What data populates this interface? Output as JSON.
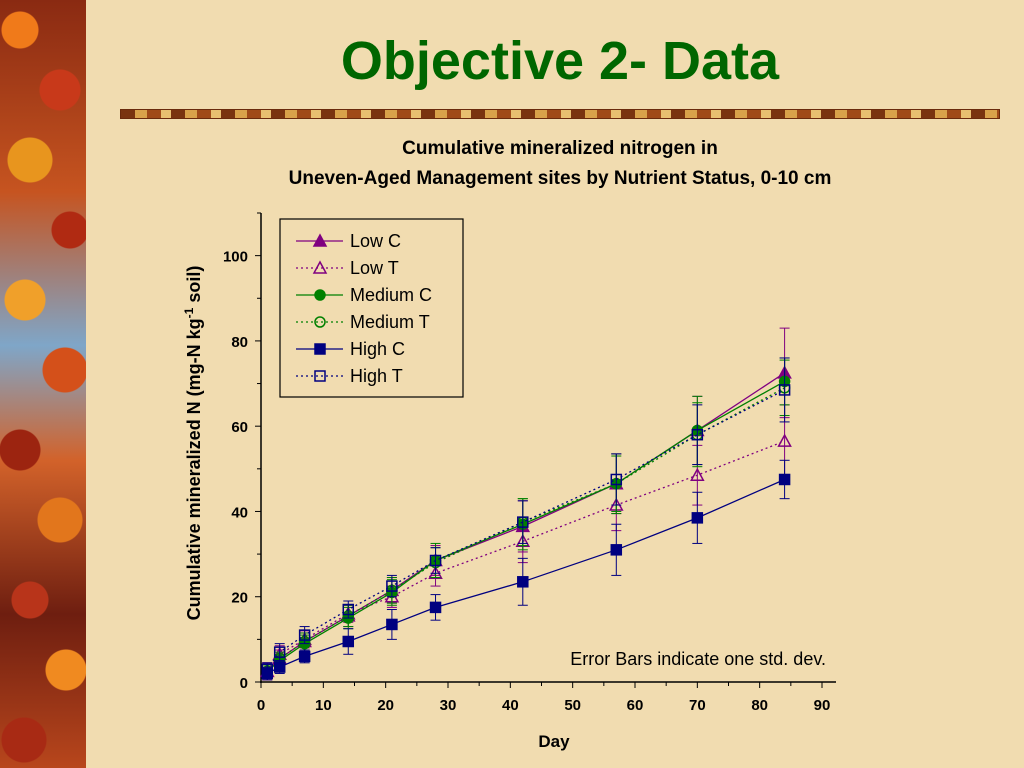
{
  "slide": {
    "title": "Objective 2- Data"
  },
  "colors": {
    "background": "#f1dcb0",
    "title": "#006600",
    "low": "#800080",
    "medium": "#008000",
    "high": "#000080"
  },
  "chart_data": {
    "type": "line",
    "title_line1": "Cumulative mineralized nitrogen in",
    "title_line2": "Uneven-Aged Management sites by Nutrient Status, 0-10 cm",
    "xlabel": "Day",
    "ylabel_main": "Cumulative mineralized N (mg-N kg",
    "ylabel_sup": "-1",
    "ylabel_end": " soil)",
    "xlim": [
      0,
      90
    ],
    "ylim": [
      0,
      110
    ],
    "xticks": [
      0,
      10,
      20,
      30,
      40,
      50,
      60,
      70,
      80,
      90
    ],
    "yticks": [
      0,
      20,
      40,
      60,
      80,
      100
    ],
    "grid": false,
    "legend_position": "top-left",
    "annotation": "Error Bars indicate one std. dev.",
    "x": [
      1,
      3,
      7,
      14,
      21,
      28,
      42,
      57,
      70,
      84
    ],
    "series": [
      {
        "name": "Low C",
        "color": "#800080",
        "marker": "triangle",
        "filled": true,
        "dashed": false,
        "values": [
          2.5,
          5.5,
          9.5,
          15.5,
          21.5,
          28.5,
          36.5,
          46.5,
          59,
          72.5
        ],
        "errors": [
          2,
          2,
          2,
          2.5,
          3,
          3.5,
          6,
          7,
          8,
          10.5
        ]
      },
      {
        "name": "Low T",
        "color": "#800080",
        "marker": "triangle",
        "filled": false,
        "dashed": true,
        "values": [
          2.5,
          6.5,
          10,
          16,
          20,
          25.5,
          33,
          41.5,
          48.5,
          56.5
        ],
        "errors": [
          2,
          2,
          2,
          2,
          2.5,
          3,
          5,
          6,
          7,
          8.5
        ]
      },
      {
        "name": "Medium C",
        "color": "#008000",
        "marker": "circle",
        "filled": true,
        "dashed": false,
        "values": [
          2.5,
          5,
          9,
          15,
          21,
          28.5,
          37,
          46.5,
          59,
          70.5
        ],
        "errors": [
          1.5,
          1.5,
          2,
          2.5,
          3,
          4,
          6,
          7,
          8,
          5.5
        ]
      },
      {
        "name": "Medium T",
        "color": "#008000",
        "marker": "circle",
        "filled": false,
        "dashed": true,
        "values": [
          2.5,
          5.5,
          9.5,
          15.5,
          21.5,
          28,
          37.5,
          46.5,
          58,
          69
        ],
        "errors": [
          1.5,
          1.5,
          2,
          2.5,
          3,
          3.5,
          5.5,
          6.5,
          7.5,
          6.5
        ]
      },
      {
        "name": "High C",
        "color": "#000080",
        "marker": "square",
        "filled": true,
        "dashed": false,
        "values": [
          2,
          3.5,
          6,
          9.5,
          13.5,
          17.5,
          23.5,
          31,
          38.5,
          47.5
        ],
        "errors": [
          1.5,
          1.5,
          1.5,
          3,
          3.5,
          3,
          5.5,
          6,
          6,
          4.5
        ]
      },
      {
        "name": "High T",
        "color": "#000080",
        "marker": "square",
        "filled": false,
        "dashed": true,
        "values": [
          3,
          7,
          11,
          17,
          22.5,
          28.5,
          37.5,
          47.5,
          58,
          68.5
        ],
        "errors": [
          1.5,
          2,
          2,
          2,
          2.5,
          3,
          5,
          6,
          7,
          7.5
        ]
      }
    ]
  }
}
